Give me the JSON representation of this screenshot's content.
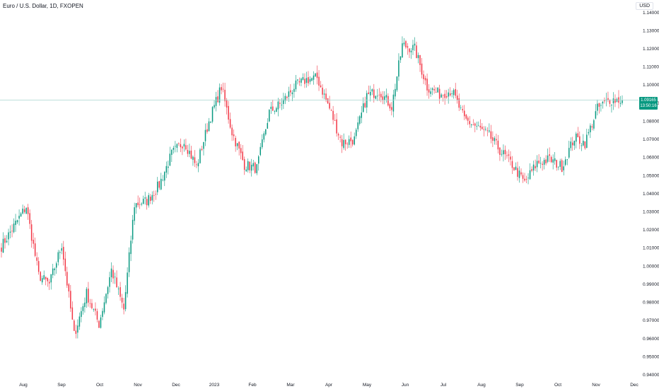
{
  "header": {
    "title": "Euro / U.S. Dollar, 1D, FXOPEN",
    "currency": "USD"
  },
  "colors": {
    "up": "#089981",
    "down": "#f23645",
    "last_line": "#a8d5cf",
    "badge": "#089981"
  },
  "last_price": {
    "value": "1.09165",
    "countdown": "13:50:16"
  },
  "chart_data": {
    "type": "candlestick",
    "title": "Euro / U.S. Dollar, 1D, FXOPEN",
    "ylim": [
      0.94,
      1.145
    ],
    "y_ticks": [
      "1.14000",
      "1.13000",
      "1.12000",
      "1.11000",
      "1.10000",
      "1.09000",
      "1.08000",
      "1.07000",
      "1.06000",
      "1.05000",
      "1.04000",
      "1.03000",
      "1.02000",
      "1.01000",
      "1.00000",
      "0.99000",
      "0.98000",
      "0.97000",
      "0.96000",
      "0.95000",
      "0.94000"
    ],
    "x_ticks": [
      "Aug",
      "Sep",
      "Oct",
      "Nov",
      "Dec",
      "2023",
      "Feb",
      "Mar",
      "Apr",
      "May",
      "Jun",
      "Jul",
      "Aug",
      "Sep",
      "Oct",
      "Nov",
      "Dec"
    ],
    "anchors": [
      {
        "label": "Jul-18",
        "close": 1.011
      },
      {
        "label": "Jul-26",
        "close": 1.022
      },
      {
        "label": "Aug-10",
        "close": 1.033
      },
      {
        "label": "Aug-22",
        "close": 0.995
      },
      {
        "label": "Sep-05",
        "close": 0.99
      },
      {
        "label": "Sep-12",
        "close": 1.012
      },
      {
        "label": "Sep-28",
        "close": 0.962
      },
      {
        "label": "Oct-04",
        "close": 0.985
      },
      {
        "label": "Oct-13",
        "close": 0.968
      },
      {
        "label": "Oct-27",
        "close": 0.998
      },
      {
        "label": "Nov-03",
        "close": 0.976
      },
      {
        "label": "Nov-11",
        "close": 1.034
      },
      {
        "label": "Nov-15",
        "close": 1.036
      },
      {
        "label": "Dec-01",
        "close": 1.045
      },
      {
        "label": "Dec-15",
        "close": 1.062
      },
      {
        "label": "Dec-30",
        "close": 1.069
      },
      {
        "label": "Jan-06",
        "close": 1.055
      },
      {
        "label": "Jan-18",
        "close": 1.08
      },
      {
        "label": "Feb-01",
        "close": 1.099
      },
      {
        "label": "Feb-06",
        "close": 1.074
      },
      {
        "label": "Feb-24",
        "close": 1.056
      },
      {
        "label": "Mar-08",
        "close": 1.054
      },
      {
        "label": "Mar-22",
        "close": 1.085
      },
      {
        "label": "Apr-03",
        "close": 1.09
      },
      {
        "label": "Apr-14",
        "close": 1.099
      },
      {
        "label": "Apr-26",
        "close": 1.103
      },
      {
        "label": "May-04",
        "close": 1.104
      },
      {
        "label": "May-12",
        "close": 1.087
      },
      {
        "label": "May-31",
        "close": 1.068
      },
      {
        "label": "Jun-06",
        "close": 1.07
      },
      {
        "label": "Jun-15",
        "close": 1.094
      },
      {
        "label": "Jun-22",
        "close": 1.097
      },
      {
        "label": "Jul-06",
        "close": 1.088
      },
      {
        "label": "Jul-14",
        "close": 1.122
      },
      {
        "label": "Jul-18",
        "close": 1.12
      },
      {
        "label": "Jul-27",
        "close": 1.099
      },
      {
        "label": "Aug-03",
        "close": 1.095
      },
      {
        "label": "Aug-10",
        "close": 1.097
      },
      {
        "label": "Aug-25",
        "close": 1.081
      },
      {
        "label": "Sep-01",
        "close": 1.077
      },
      {
        "label": "Sep-07",
        "close": 1.072
      },
      {
        "label": "Sep-14",
        "close": 1.064
      },
      {
        "label": "Sep-26",
        "close": 1.056
      },
      {
        "label": "Oct-03",
        "close": 1.046
      },
      {
        "label": "Oct-12",
        "close": 1.057
      },
      {
        "label": "Oct-20",
        "close": 1.059
      },
      {
        "label": "Oct-26",
        "close": 1.055
      },
      {
        "label": "Nov-03",
        "close": 1.071
      },
      {
        "label": "Nov-10",
        "close": 1.068
      },
      {
        "label": "Nov-14",
        "close": 1.087
      },
      {
        "label": "Nov-22",
        "close": 1.092
      },
      {
        "label": "Nov-24",
        "close": 1.0917
      }
    ]
  }
}
